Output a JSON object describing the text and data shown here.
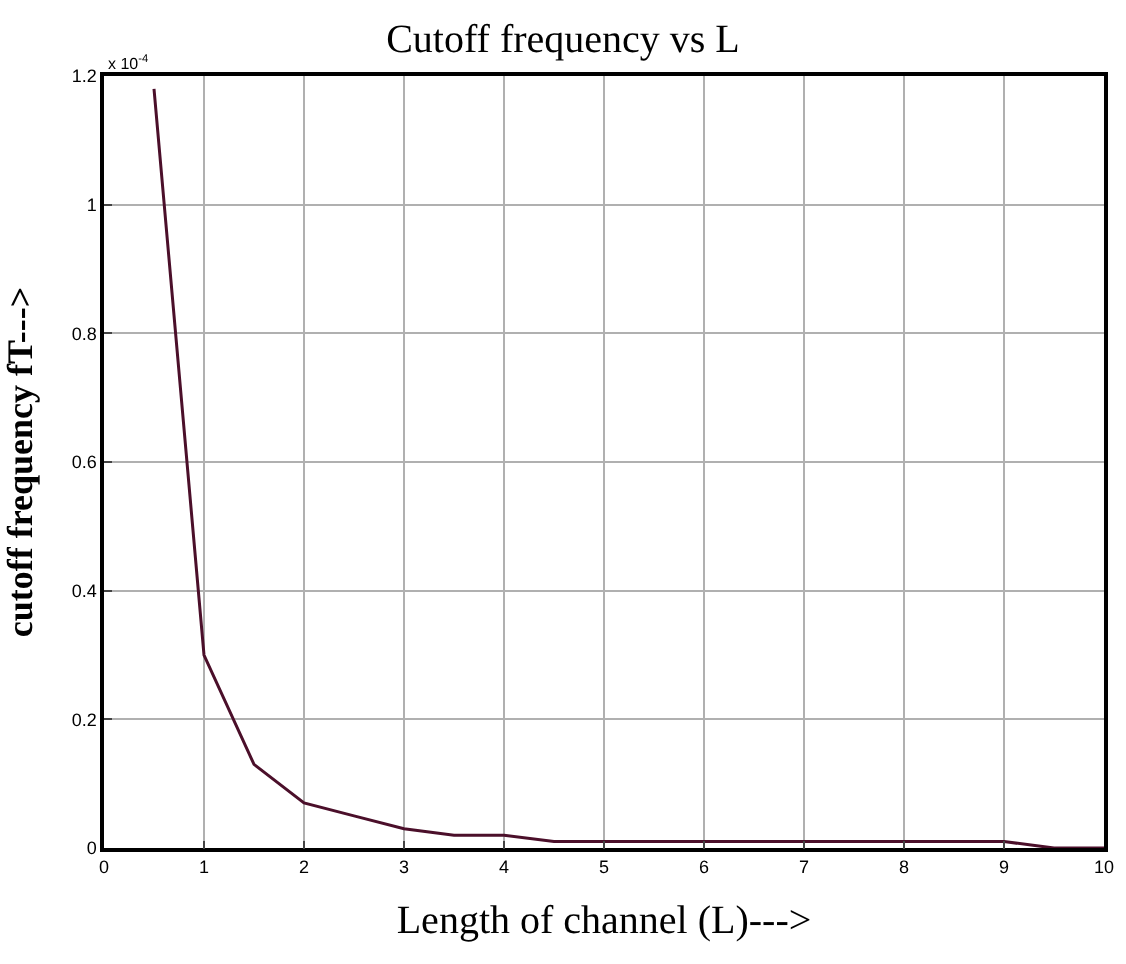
{
  "chart_data": {
    "type": "line",
    "title": "Cutoff frequency vs L",
    "xlabel": "Length of channel (L)--->",
    "ylabel": "cutoff frequency fT--->",
    "annotations": [
      "x 10$^{-4}$"
    ],
    "x": [
      0.5,
      1,
      1.5,
      2,
      2.5,
      3,
      3.5,
      4,
      4.5,
      5,
      5.5,
      6,
      6.5,
      7,
      7.5,
      8,
      8.5,
      9,
      9.5,
      10
    ],
    "series": [
      {
        "color": "#4b0f2a",
        "values": [
          1.18,
          0.3,
          0.13,
          0.07,
          0.05,
          0.03,
          0.02,
          0.02,
          0.01,
          0.01,
          0.01,
          0.01,
          0.01,
          0.01,
          0.01,
          0.01,
          0.01,
          0.01,
          0.0,
          0.0
        ]
      }
    ],
    "xlim": [
      0,
      10
    ],
    "xticks": [
      0,
      1,
      2,
      3,
      4,
      5,
      6,
      7,
      8,
      9,
      10
    ],
    "ylim": [
      0,
      1.2
    ],
    "yticks": [
      0,
      0.2,
      0.4,
      0.6,
      0.8,
      1,
      1.2
    ],
    "grid": true,
    "legend": false,
    "marker": "none",
    "line_style": "solid"
  }
}
